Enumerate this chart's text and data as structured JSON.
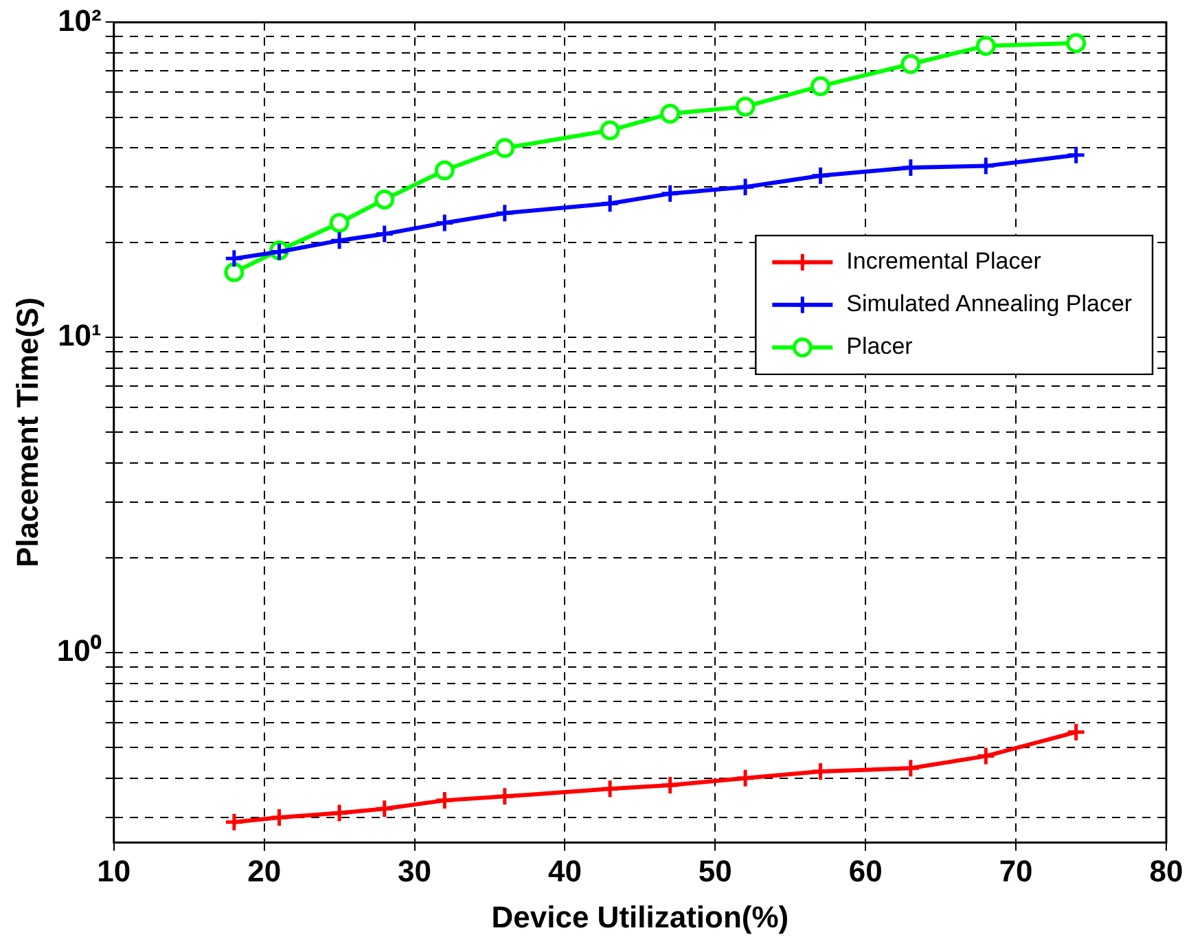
{
  "chart_data": {
    "type": "line",
    "xlabel": "Device Utilization(%)",
    "ylabel": "Placement Time(S)",
    "log": "y",
    "grid": true,
    "legend": "top right",
    "line_style": "solid",
    "x": [
      18,
      21,
      25,
      28,
      32,
      36,
      43,
      47,
      52,
      57,
      63,
      68,
      74
    ],
    "xlim": [
      10,
      80
    ],
    "xticks": [
      10,
      20,
      30,
      40,
      50,
      60,
      70,
      80
    ],
    "ylim": [
      0.25,
      100
    ],
    "yticks": [
      {
        "value": 0.3,
        "label": null
      },
      {
        "value": 0.4,
        "label": null
      },
      {
        "value": 0.5,
        "label": null
      },
      {
        "value": 0.6,
        "label": null
      },
      {
        "value": 0.7,
        "label": null
      },
      {
        "value": 0.8,
        "label": null
      },
      {
        "value": 0.9,
        "label": null
      },
      {
        "value": 1,
        "label": "10⁰"
      },
      {
        "value": 2,
        "label": null
      },
      {
        "value": 3,
        "label": null
      },
      {
        "value": 4,
        "label": null
      },
      {
        "value": 5,
        "label": null
      },
      {
        "value": 6,
        "label": null
      },
      {
        "value": 7,
        "label": null
      },
      {
        "value": 8,
        "label": null
      },
      {
        "value": 9,
        "label": null
      },
      {
        "value": 10,
        "label": "10¹"
      },
      {
        "value": 20,
        "label": null
      },
      {
        "value": 30,
        "label": null
      },
      {
        "value": 40,
        "label": null
      },
      {
        "value": 50,
        "label": null
      },
      {
        "value": 60,
        "label": null
      },
      {
        "value": 70,
        "label": null
      },
      {
        "value": 80,
        "label": null
      },
      {
        "value": 90,
        "label": null
      },
      {
        "value": 100,
        "label": "10²"
      }
    ],
    "series": [
      {
        "name": "Incremental Placer",
        "color": "#ff0000",
        "marker": "cross",
        "values": [
          0.29,
          0.3,
          0.31,
          0.32,
          0.34,
          0.35,
          0.37,
          0.38,
          0.4,
          0.42,
          0.43,
          0.47,
          0.56
        ]
      },
      {
        "name": "Simulated Annealing Placer",
        "color": "#0000ff",
        "marker": "cross",
        "values": [
          17.8,
          18.7,
          20.3,
          21.3,
          23.1,
          24.8,
          26.6,
          28.6,
          30.0,
          32.6,
          34.6,
          35.0,
          37.9
        ]
      },
      {
        "name": "Placer",
        "color": "#00ff00",
        "marker": "circle",
        "values": [
          16.1,
          18.9,
          23.1,
          27.4,
          33.9,
          39.9,
          45.4,
          51.3,
          54.0,
          62.7,
          73.7,
          84.2,
          85.9
        ]
      }
    ]
  }
}
